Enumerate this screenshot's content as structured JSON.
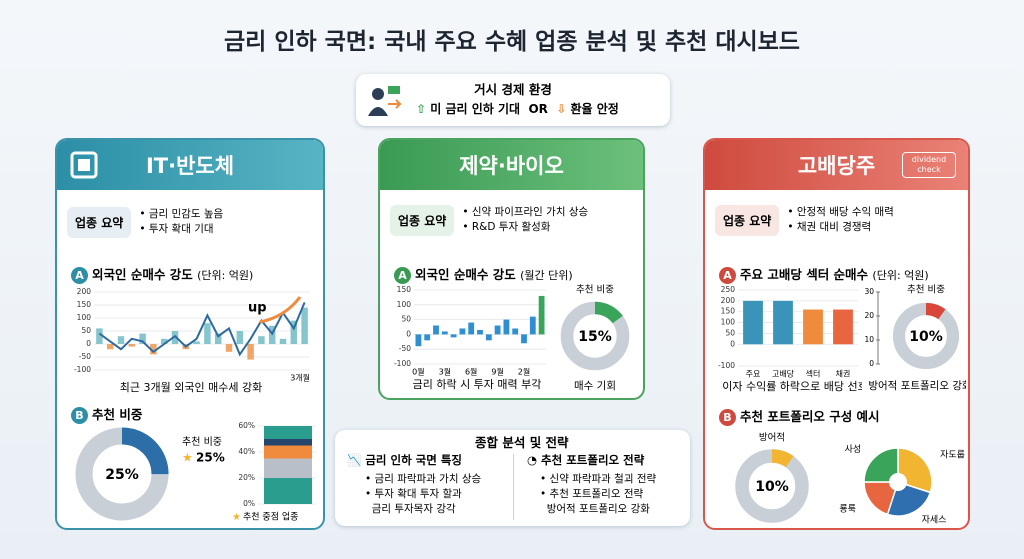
{
  "title": "금리 인하 국면: 국내 주요 수혜 업종 분석 및 추천 대시보드",
  "macro": {
    "title": "거시 경제 환경",
    "item1": "미 금리 인하 기대",
    "or": "OR",
    "item2": "환율 안정"
  },
  "sectors": [
    {
      "name": "IT·반도체",
      "summary_label": "업종 요약",
      "summary": [
        "금리 민감도 높음",
        "투자 확대 기대"
      ],
      "section_a_badge": "A",
      "section_a": "외국인 순매수 강도",
      "section_a_unit": "(단위: 억원)",
      "section_b_badge": "B",
      "section_b": "추천 비중"
    },
    {
      "name": "제약·바이오",
      "summary_label": "업종 요약",
      "summary": [
        "신약 파이프라인 가치 상승",
        "R&D 투자 활성화"
      ],
      "section_a_badge": "A",
      "section_a": "외국인 순매수 강도",
      "section_a_unit": "(월간 단위)"
    },
    {
      "name": "고배당주",
      "icon_text": "dividend check",
      "summary_label": "업종 요약",
      "summary": [
        "안정적 배당 수익 매력",
        "채권 대비 경쟁력"
      ],
      "section_a_badge": "A",
      "section_a": "주요 고배당 섹터 순매수",
      "section_a_unit": "(단위: 억원)",
      "section_b_badge": "B",
      "section_b": "추천 포트폴리오 구성 예시"
    }
  ],
  "strategy": {
    "title": "종합 분석 및 전략",
    "left": {
      "title": "금리 인하 국면 특징",
      "items": [
        "금리 파락파과 가치 상승",
        "투자 확대 투자 할과",
        "금리 투자목자 강각"
      ]
    },
    "right": {
      "title": "추천 포트폴리오 전략",
      "items": [
        "신약 파락파과 철괴 전략",
        "추천 포트폴리오 전략",
        "방어적 포트폴리오 강화"
      ]
    }
  },
  "chart_data": [
    {
      "type": "combo",
      "ylim": [
        -100,
        200
      ],
      "yticks": [
        200,
        150,
        100,
        50,
        0,
        -50,
        -100
      ],
      "series": [
        {
          "type": "bar",
          "color": "#86c5cd",
          "negative_color": "#f0a66b",
          "values": [
            60,
            -20,
            30,
            -10,
            40,
            -40,
            20,
            50,
            -20,
            10,
            80,
            40,
            -30,
            50,
            -60,
            30,
            70,
            20,
            90,
            140
          ]
        },
        {
          "type": "line",
          "color": "#2d6a9f",
          "values": [
            40,
            10,
            -20,
            20,
            10,
            -30,
            0,
            30,
            -10,
            20,
            110,
            30,
            60,
            -40,
            20,
            90,
            40,
            120,
            60,
            160
          ]
        }
      ],
      "annotation": "up",
      "x_label": "3개월",
      "caption": "최근 3개월 외국인 매수세 강화"
    },
    {
      "type": "donut",
      "label": "추천 비중",
      "values": [
        25
      ],
      "value_labels": [
        "25%"
      ],
      "color": "#2b6ea8",
      "track_color": "#c9cfd7"
    },
    {
      "type": "stacked_bar",
      "ylim": [
        0,
        60
      ],
      "yticks": [
        {
          "value": 0,
          "label": "0%"
        },
        {
          "value": 20,
          "label": "20%"
        },
        {
          "value": 40,
          "label": "40%"
        },
        {
          "value": 60,
          "label": "60%"
        }
      ],
      "series": [
        {
          "color": "#2a9d8f",
          "values": [
            20
          ]
        },
        {
          "color": "#b9bfc8",
          "values": [
            15
          ]
        },
        {
          "color": "#f08a3c",
          "values": [
            10
          ]
        },
        {
          "color": "#26466d",
          "values": [
            5
          ]
        },
        {
          "color": "#2a9d8f",
          "values": [
            10
          ]
        }
      ],
      "legend": "추천 중점 업종"
    },
    {
      "type": "bar",
      "categories": [
        "0월",
        null,
        null,
        "3월",
        null,
        null,
        "6월",
        null,
        null,
        "9월",
        null,
        null,
        "2월",
        null,
        null
      ],
      "values": [
        -40,
        -20,
        30,
        10,
        -10,
        20,
        40,
        15,
        -20,
        30,
        50,
        20,
        -30,
        60,
        130
      ],
      "colors": [
        "#2f8fd0",
        "#2f8fd0",
        "#2f8fd0",
        "#2f8fd0",
        "#2f8fd0",
        "#2f8fd0",
        "#2f8fd0",
        "#2f8fd0",
        "#2f8fd0",
        "#2f8fd0",
        "#2f8fd0",
        "#2f8fd0",
        "#2f8fd0",
        "#2f8fd0",
        "#3aa55a"
      ],
      "ylim": [
        -100,
        150
      ],
      "yticks": [
        150,
        100,
        50,
        0,
        -50,
        -100
      ],
      "caption": "금리 하락 시 투자 매력 부각"
    },
    {
      "type": "donut",
      "label": "추천 비중",
      "values": [
        15
      ],
      "value_labels": [
        "15%"
      ],
      "color": "#3aa55a",
      "track_color": "#c9cfd7",
      "caption": "매수 기회"
    },
    {
      "type": "bar",
      "categories": [
        "주요",
        "고배당",
        "섹터",
        "채권"
      ],
      "values": [
        200,
        200,
        160,
        160
      ],
      "colors": [
        "#3a93b8",
        "#3a93b8",
        "#f08a3c",
        "#e8663f"
      ],
      "ylim": [
        -100,
        250
      ],
      "yticks": [
        250,
        200,
        150,
        100,
        50,
        0,
        -100
      ],
      "caption": "이자 수익률 하락으로 배당 선호"
    },
    {
      "type": "donut",
      "label": "추천 비중",
      "values": [
        10
      ],
      "value_labels": [
        "10%"
      ],
      "color": "#d9463a",
      "track_color": "#c9cfd7",
      "ylim": [
        0,
        30
      ],
      "yticks": [
        30,
        20,
        10,
        0
      ],
      "caption": "방어적 포트폴리오 강화"
    },
    {
      "type": "donut",
      "label": "방어적",
      "values": [
        10
      ],
      "value_labels": [
        "10%"
      ],
      "color": "#f2b531",
      "track_color": "#c9cfd7"
    },
    {
      "type": "pie",
      "categories": [
        "자도룹",
        "자세스",
        "룡룩",
        "사성"
      ],
      "values": [
        30,
        25,
        20,
        25
      ],
      "colors": [
        "#f2b531",
        "#2f6fb0",
        "#e8663f",
        "#3aa55a"
      ]
    }
  ]
}
